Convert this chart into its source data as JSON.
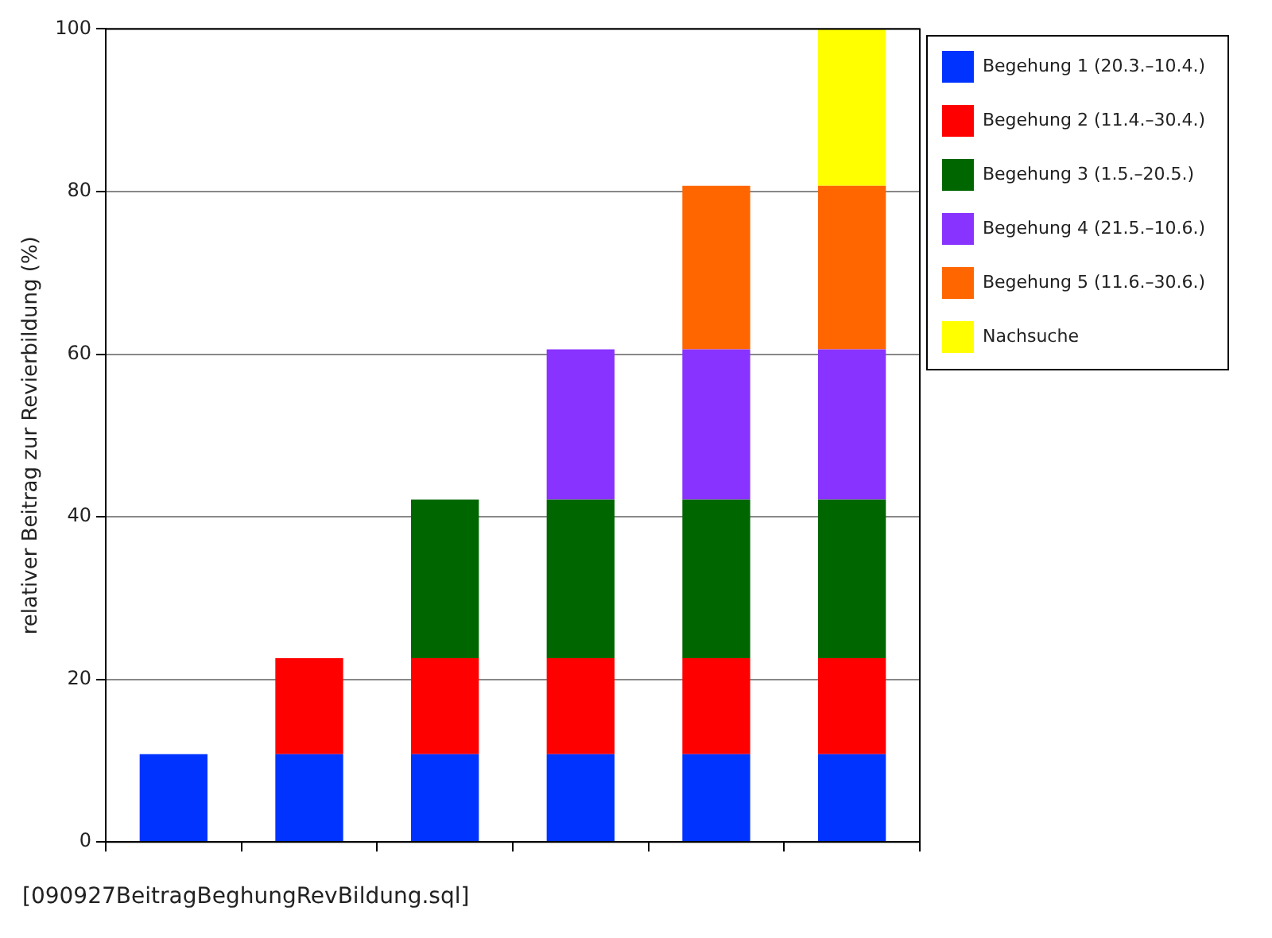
{
  "chart_data": {
    "type": "bar",
    "stacked": true,
    "ylabel": "relativer Beitrag zur Revierbildung (%)",
    "categories": [
      null,
      null,
      null,
      null,
      null,
      null
    ],
    "series": [
      {
        "name": "Begehung 1 (20.3.–10.4.)",
        "color": "#0033ff",
        "values": [
          10.8,
          10.8,
          10.8,
          10.8,
          10.8,
          10.8
        ]
      },
      {
        "name": "Begehung 2 (11.4.–30.4.)",
        "color": "#ff0000",
        "values": [
          null,
          11.8,
          11.8,
          11.8,
          11.8,
          11.8
        ]
      },
      {
        "name": "Begehung 3 (1.5.–20.5.)",
        "color": "#006600",
        "values": [
          null,
          null,
          19.5,
          19.5,
          19.5,
          19.5
        ]
      },
      {
        "name": "Begehung 4 (21.5.–10.6.)",
        "color": "#8833ff",
        "values": [
          null,
          null,
          null,
          18.5,
          18.5,
          18.5
        ]
      },
      {
        "name": "Begehung 5 (11.6.–30.6.)",
        "color": "#ff6600",
        "values": [
          null,
          null,
          null,
          null,
          20.1,
          20.1
        ]
      },
      {
        "name": "Nachsuche",
        "color": "#ffff00",
        "values": [
          null,
          null,
          null,
          null,
          null,
          19.3
        ]
      }
    ],
    "ylim": [
      0,
      100
    ],
    "yticks": [
      0,
      20,
      40,
      60,
      80,
      100
    ],
    "grid": "y",
    "legend": "top right",
    "annotations": [
      "[090927BeitragBeghungRevBildung.sql]"
    ]
  }
}
